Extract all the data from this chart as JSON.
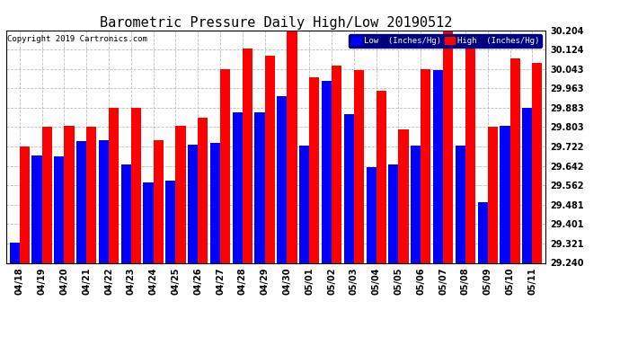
{
  "title": "Barometric Pressure Daily High/Low 20190512",
  "copyright": "Copyright 2019 Cartronics.com",
  "legend_low": "Low  (Inches/Hg)",
  "legend_high": "High  (Inches/Hg)",
  "dates": [
    "04/18",
    "04/19",
    "04/20",
    "04/21",
    "04/22",
    "04/23",
    "04/24",
    "04/25",
    "04/26",
    "04/27",
    "04/28",
    "04/29",
    "04/30",
    "05/01",
    "05/02",
    "05/03",
    "05/04",
    "05/05",
    "05/06",
    "05/07",
    "05/08",
    "05/09",
    "05/10",
    "05/11"
  ],
  "low_values": [
    29.323,
    29.687,
    29.683,
    29.745,
    29.748,
    29.648,
    29.573,
    29.58,
    29.73,
    29.738,
    29.863,
    29.865,
    29.93,
    29.728,
    29.993,
    29.855,
    29.635,
    29.648,
    29.725,
    30.038,
    29.725,
    29.49,
    29.81,
    29.883
  ],
  "high_values": [
    29.723,
    29.803,
    29.808,
    29.803,
    29.883,
    29.883,
    29.748,
    29.808,
    29.843,
    30.043,
    30.128,
    30.098,
    30.203,
    30.008,
    30.058,
    30.038,
    29.953,
    29.793,
    30.043,
    30.203,
    30.158,
    29.803,
    30.088,
    30.068
  ],
  "ylim_min": 29.24,
  "ylim_max": 30.204,
  "yticks": [
    29.24,
    29.321,
    29.401,
    29.481,
    29.562,
    29.642,
    29.722,
    29.803,
    29.883,
    29.963,
    30.043,
    30.124,
    30.204
  ],
  "low_color": "#0000ff",
  "high_color": "#ff0000",
  "bg_color": "#ffffff",
  "grid_color": "#bbbbbb",
  "title_fontsize": 11,
  "tick_fontsize": 7,
  "copyright_fontsize": 6.5
}
